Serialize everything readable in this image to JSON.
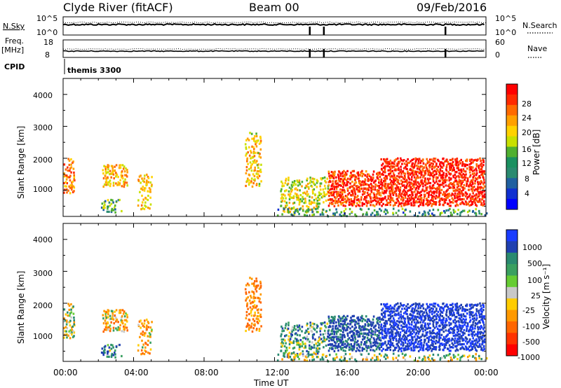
{
  "header": {
    "station": "Clyde River (fitACF)",
    "beam": "Beam 00",
    "date": "09/Feb/2016"
  },
  "strips": {
    "nsky_label": "N.Sky",
    "nsky_ticks": [
      "10^5",
      "10^0"
    ],
    "nsearch_label": "N.Search",
    "nsearch_ticks": [
      "10^5",
      "10^0"
    ],
    "freq_label": "Freq.",
    "freq_unit": "[MHz]",
    "freq_ticks": [
      "18",
      "8"
    ],
    "nave_label": "Nave",
    "nave_ticks": [
      "60",
      "0"
    ],
    "cpid_label": "CPID",
    "cpid_value": "themis 3300",
    "gap_hours": [
      14.0,
      14.8,
      21.7
    ]
  },
  "power_panel": {
    "ylabel": "Slant Range [km]",
    "yticks": [
      "4000",
      "3000",
      "2000",
      "1000"
    ],
    "colorbar_label": "Power [dB]",
    "colorbar_ticks": [
      "28",
      "24",
      "20",
      "16",
      "12",
      "8",
      "4"
    ],
    "colorbar_colors": [
      "#ff0000",
      "#ff2a00",
      "#ff6a00",
      "#ffa000",
      "#ffd200",
      "#c8e000",
      "#50b030",
      "#1a9060",
      "#2a8a70",
      "#2060a0",
      "#1030d0",
      "#0000ff"
    ]
  },
  "velocity_panel": {
    "ylabel": "Slant Range [km]",
    "yticks": [
      "4000",
      "3000",
      "2000",
      "1000"
    ],
    "colorbar_label": "Velocity [m s⁻¹]",
    "colorbar_ticks": [
      "1000",
      "500",
      "100",
      "25",
      "-25",
      "-100",
      "-500",
      "-1000"
    ],
    "colorbar_colors": [
      "#1a3cff",
      "#2040b0",
      "#2a8a70",
      "#3aa060",
      "#66cc33",
      "#c8c8c8",
      "#ffcc00",
      "#ff9900",
      "#ff6600",
      "#ff3300",
      "#ff0000"
    ]
  },
  "xaxis": {
    "ticks": [
      "00:00",
      "04:00",
      "08:00",
      "12:00",
      "16:00",
      "20:00",
      "00:00"
    ],
    "label": "Time UT"
  },
  "chart_data": {
    "type": "heatmap",
    "title": "Clyde River (fitACF)",
    "xlabel": "Time UT",
    "ylabel": "Slant Range [km]",
    "xlim": [
      0,
      24
    ],
    "ylim": [
      180,
      4500
    ],
    "power_range_db": [
      0,
      30
    ],
    "velocity_range_ms": [
      -1000,
      1000
    ],
    "echo_regions": [
      {
        "t": [
          0.0,
          0.6
        ],
        "r": [
          900,
          2000
        ],
        "power": 22,
        "velocity": -60,
        "density": 0.55
      },
      {
        "t": [
          2.2,
          3.6
        ],
        "r": [
          1100,
          1800
        ],
        "power": 20,
        "velocity": -150,
        "density": 0.7
      },
      {
        "t": [
          2.1,
          3.3
        ],
        "r": [
          300,
          700
        ],
        "power": 12,
        "velocity": 200,
        "density": 0.45
      },
      {
        "t": [
          4.2,
          5.0
        ],
        "r": [
          400,
          1500
        ],
        "power": 18,
        "velocity": -200,
        "density": 0.45
      },
      {
        "t": [
          10.3,
          11.2
        ],
        "r": [
          1100,
          2800
        ],
        "power": 18,
        "velocity": -300,
        "density": 0.55
      },
      {
        "t": [
          12.3,
          15.0
        ],
        "r": [
          300,
          1400
        ],
        "power": 16,
        "velocity": 150,
        "density": 0.5
      },
      {
        "t": [
          15.0,
          18.0
        ],
        "r": [
          500,
          1600
        ],
        "power": 26,
        "velocity": 400,
        "density": 0.8
      },
      {
        "t": [
          18.0,
          23.9
        ],
        "r": [
          500,
          2000
        ],
        "power": 27,
        "velocity": 700,
        "density": 0.85
      },
      {
        "t": [
          12.0,
          24.0
        ],
        "r": [
          180,
          420
        ],
        "power": 10,
        "velocity": 50,
        "density": 0.4
      }
    ]
  }
}
